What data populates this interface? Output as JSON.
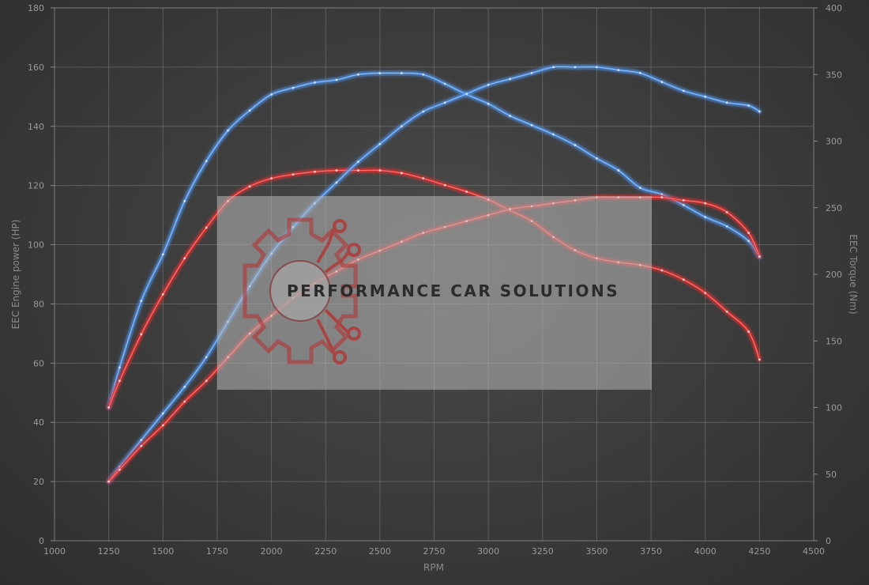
{
  "chart_data": {
    "type": "line",
    "xlabel": "RPM",
    "ylabel_left": "EEC Engine power (HP)",
    "ylabel_right": "EEC Torque (Nm)",
    "xlim": [
      1000,
      4500
    ],
    "ylim_left": [
      0,
      180
    ],
    "ylim_right": [
      0,
      400
    ],
    "x_ticks": [
      1000,
      1250,
      1500,
      1750,
      2000,
      2250,
      2500,
      2750,
      3000,
      3250,
      3500,
      3750,
      4000,
      4250,
      4500
    ],
    "y_ticks_left": [
      0,
      20,
      40,
      60,
      80,
      100,
      120,
      140,
      160,
      180
    ],
    "y_ticks_right": [
      0,
      50,
      100,
      150,
      200,
      250,
      300,
      350,
      400
    ],
    "grid": true,
    "series": [
      {
        "kind": "torque-tuned",
        "axis": "right",
        "color": "#4f8fe0",
        "x": [
          1250,
          1300,
          1400,
          1500,
          1600,
          1700,
          1800,
          1900,
          2000,
          2100,
          2200,
          2300,
          2400,
          2500,
          2600,
          2700,
          2800,
          2900,
          3000,
          3100,
          3200,
          3300,
          3400,
          3500,
          3600,
          3700,
          3800,
          3900,
          4000,
          4100,
          4200,
          4250
        ],
        "y": [
          100,
          130,
          180,
          215,
          255,
          285,
          308,
          323,
          335,
          340,
          344,
          346,
          350,
          351,
          351,
          350,
          343,
          335,
          328,
          319,
          312,
          305,
          297,
          287,
          278,
          265,
          260,
          252,
          243,
          236,
          225,
          213
        ]
      },
      {
        "kind": "torque-stock",
        "axis": "right",
        "color": "#e03030",
        "x": [
          1250,
          1300,
          1400,
          1500,
          1600,
          1700,
          1800,
          1900,
          2000,
          2100,
          2200,
          2300,
          2400,
          2500,
          2600,
          2700,
          2800,
          2900,
          3000,
          3100,
          3200,
          3300,
          3400,
          3500,
          3600,
          3700,
          3800,
          3900,
          4000,
          4100,
          4200,
          4250
        ],
        "y": [
          100,
          120,
          155,
          185,
          212,
          235,
          255,
          266,
          272,
          275,
          277,
          278,
          278,
          278,
          276,
          272,
          267,
          262,
          256,
          248,
          240,
          228,
          218,
          212,
          209,
          207,
          203,
          196,
          186,
          172,
          157,
          136
        ]
      },
      {
        "kind": "power-tuned",
        "axis": "left",
        "color": "#4f8fe0",
        "x": [
          1250,
          1300,
          1400,
          1500,
          1600,
          1700,
          1800,
          1900,
          2000,
          2100,
          2200,
          2300,
          2400,
          2500,
          2600,
          2700,
          2800,
          2900,
          3000,
          3100,
          3200,
          3300,
          3400,
          3500,
          3600,
          3700,
          3800,
          3900,
          4000,
          4100,
          4200,
          4250
        ],
        "y": [
          20,
          25,
          34,
          43,
          52,
          62,
          74,
          86,
          97,
          106,
          114,
          121,
          128,
          134,
          140,
          145,
          148,
          151,
          154,
          156,
          158,
          160,
          160,
          160,
          159,
          158,
          155,
          152,
          150,
          148,
          147,
          145
        ]
      },
      {
        "kind": "power-stock",
        "axis": "left",
        "color": "#e03030",
        "x": [
          1250,
          1300,
          1400,
          1500,
          1600,
          1700,
          1800,
          1900,
          2000,
          2100,
          2200,
          2300,
          2400,
          2500,
          2600,
          2700,
          2800,
          2900,
          3000,
          3100,
          3200,
          3300,
          3400,
          3500,
          3600,
          3700,
          3800,
          3900,
          4000,
          4100,
          4200,
          4250
        ],
        "y": [
          20,
          24,
          32,
          39,
          47,
          54,
          62,
          70,
          76,
          82,
          87,
          91,
          95,
          98,
          101,
          104,
          106,
          108,
          110,
          112,
          113,
          114,
          115,
          116,
          116,
          116,
          116,
          115,
          114,
          111,
          104,
          96
        ]
      }
    ]
  },
  "watermark": {
    "text": "PERFORMANCE CAR SOLUTIONS",
    "logo_icon": "gear-circuit-icon"
  }
}
